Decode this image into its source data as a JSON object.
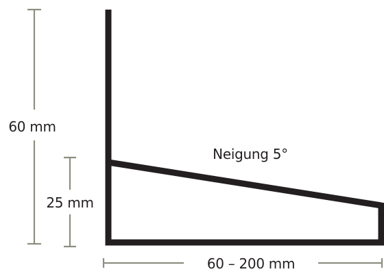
{
  "dimensions": {
    "total_height": "60 mm",
    "front_height": "25 mm",
    "width_range": "60 – 200 mm"
  },
  "slope_label": "Neigung 5°",
  "colors": {
    "profile": "#231f20",
    "dimension_lines": "#8c8f80",
    "background": "#ffffff"
  }
}
